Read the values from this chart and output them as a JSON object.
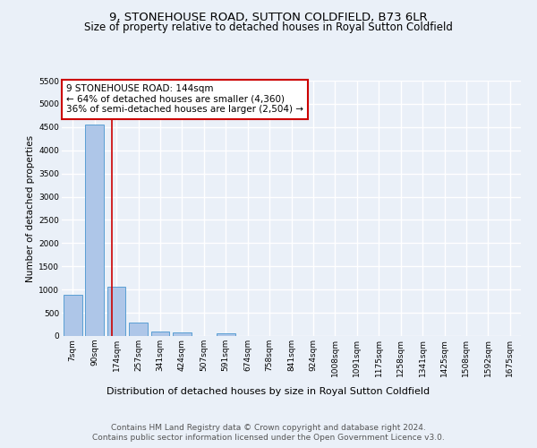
{
  "title": "9, STONEHOUSE ROAD, SUTTON COLDFIELD, B73 6LR",
  "subtitle": "Size of property relative to detached houses in Royal Sutton Coldfield",
  "xlabel": "Distribution of detached houses by size in Royal Sutton Coldfield",
  "ylabel": "Number of detached properties",
  "categories": [
    "7sqm",
    "90sqm",
    "174sqm",
    "257sqm",
    "341sqm",
    "424sqm",
    "507sqm",
    "591sqm",
    "674sqm",
    "758sqm",
    "841sqm",
    "924sqm",
    "1008sqm",
    "1091sqm",
    "1175sqm",
    "1258sqm",
    "1341sqm",
    "1425sqm",
    "1508sqm",
    "1592sqm",
    "1675sqm"
  ],
  "values": [
    880,
    4560,
    1060,
    290,
    90,
    80,
    0,
    55,
    0,
    0,
    0,
    0,
    0,
    0,
    0,
    0,
    0,
    0,
    0,
    0,
    0
  ],
  "bar_color": "#aec6e8",
  "bar_edge_color": "#5a9fd4",
  "vline_x": 1.8,
  "vline_color": "#cc0000",
  "annotation_text": "9 STONEHOUSE ROAD: 144sqm\n← 64% of detached houses are smaller (4,360)\n36% of semi-detached houses are larger (2,504) →",
  "annotation_box_color": "#ffffff",
  "annotation_box_edge": "#cc0000",
  "ylim": [
    0,
    5500
  ],
  "yticks": [
    0,
    500,
    1000,
    1500,
    2000,
    2500,
    3000,
    3500,
    4000,
    4500,
    5000,
    5500
  ],
  "bg_color": "#eaf0f8",
  "axes_bg_color": "#eaf0f8",
  "grid_color": "#ffffff",
  "title_fontsize": 9.5,
  "subtitle_fontsize": 8.5,
  "xlabel_fontsize": 8,
  "ylabel_fontsize": 7.5,
  "tick_fontsize": 6.5,
  "annotation_fontsize": 7.5,
  "footer1": "Contains HM Land Registry data © Crown copyright and database right 2024.",
  "footer2": "Contains public sector information licensed under the Open Government Licence v3.0.",
  "footer_fontsize": 6.5
}
